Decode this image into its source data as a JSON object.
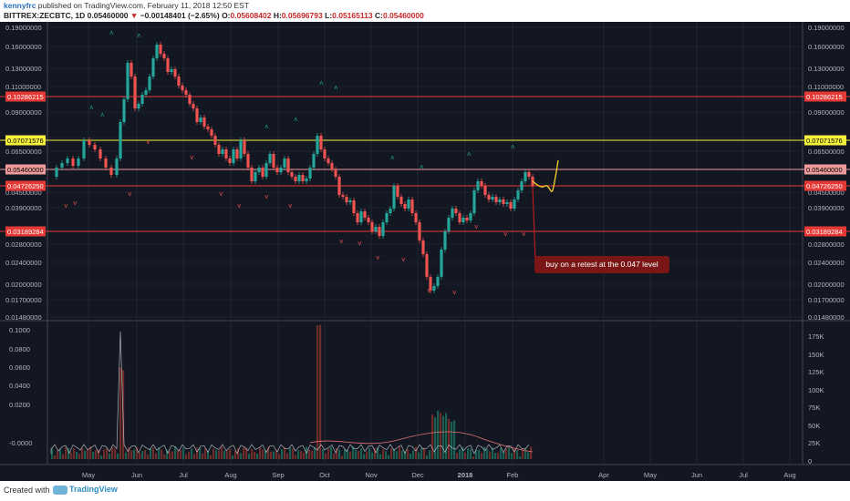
{
  "header": {
    "author": "kennyfrc",
    "published_text": " published on TradingView.com, February 11, 2018 12:50 EST",
    "symbol": "BITTREX:ZECBTC, 1D",
    "last_price": "0.05460000",
    "change_arrow": "▼",
    "change": "−0.00148401 (−2.65%)",
    "open_label": "O:",
    "open": "0.05608402",
    "high_label": "H:",
    "high": "0.05696793",
    "low_label": "L:",
    "low": "0.05165113",
    "close_label": "C:",
    "close": "0.05460000"
  },
  "price_axis_labels": [
    "0.19000000",
    "0.16000000",
    "0.13000000",
    "0.11000000",
    "0.09000000",
    "0.07500000",
    "0.06500000",
    "0.04500000",
    "0.03900000",
    "0.02800000",
    "0.02400000",
    "0.02000000",
    "0.01700000",
    "0.01480000"
  ],
  "levels": [
    {
      "label": "0.10286215",
      "color": "#e53935",
      "text_color": "#ffffff"
    },
    {
      "label": "0.07071576",
      "color": "#f5f23b",
      "text_color": "#000000"
    },
    {
      "label": "0.05460000",
      "color": "#ef9a9a",
      "text_color": "#000000"
    },
    {
      "label": "0.04726250",
      "color": "#e53935",
      "text_color": "#ffffff"
    },
    {
      "label": "0.03189284",
      "color": "#e53935",
      "text_color": "#ffffff"
    }
  ],
  "volume_axis_left": [
    "0.1000",
    "0.0800",
    "0.0600",
    "0.0400",
    "0.0200",
    "-0.0000"
  ],
  "volume_axis_right": [
    "175K",
    "150K",
    "125K",
    "100K",
    "75K",
    "50K",
    "25K",
    "0"
  ],
  "time_axis": [
    "May",
    "Jun",
    "Jul",
    "Aug",
    "Sep",
    "Oct",
    "Nov",
    "Dec",
    "2018",
    "Feb",
    "Apr",
    "May",
    "Jun",
    "Jul",
    "Aug"
  ],
  "annotation": "buy on a retest at the 0.047 level",
  "footer": {
    "created_with": "Created with",
    "brand": "TradingView"
  },
  "colors": {
    "up": "#26a69a",
    "down": "#ef5350",
    "background": "#131722",
    "grid": "#2a2e39"
  }
}
